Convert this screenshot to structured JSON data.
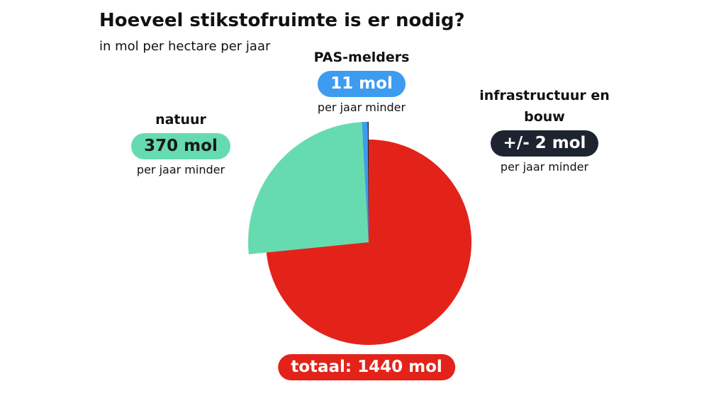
{
  "chart_data": {
    "type": "pie",
    "title": "Hoeveel stikstofruimte is er nodig?",
    "subtitle": "in mol per hectare per jaar",
    "total": {
      "value": 1440,
      "label": "totaal: 1440 mol"
    },
    "total_color": "#e3231a",
    "categories": [
      "infrastructuur en bouw",
      "PAS-melders",
      "natuur"
    ],
    "values": [
      2,
      11,
      370
    ],
    "value_labels": [
      "+/- 2 mol",
      "11 mol",
      "370 mol"
    ],
    "notes": [
      "per jaar minder",
      "per jaar minder",
      "per jaar minder"
    ],
    "colors": [
      "#1d2430",
      "#3d9cf0",
      "#66dbb0"
    ],
    "label_text_colors": [
      "#ffffff",
      "#ffffff",
      "#1a1a1a"
    ]
  }
}
